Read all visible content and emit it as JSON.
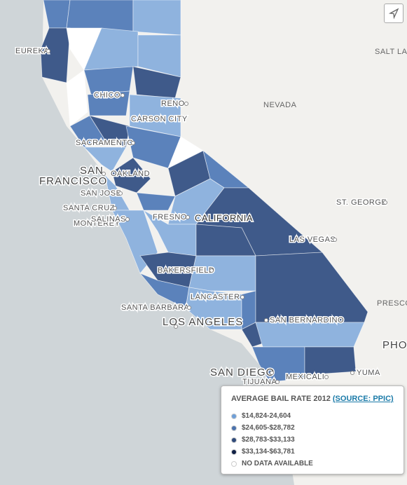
{
  "legend": {
    "title": "AVERAGE BAIL RATE 2012",
    "source": "(SOURCE: PPIC)",
    "items": [
      {
        "label": "$14,824-24,604",
        "color": "#6f9fd8"
      },
      {
        "label": "$24,605-$28,782",
        "color": "#4a72ad"
      },
      {
        "label": "$28,783-$33,133",
        "color": "#2f4a7a"
      },
      {
        "label": "$33,134-$63,781",
        "color": "#0f1f45"
      },
      {
        "label": "NO DATA AVAILABLE",
        "color": "#ffffff"
      }
    ]
  },
  "map": {
    "labels": [
      "EUREKA",
      "NEVADA",
      "SALT LAKE",
      "RENO",
      "CARSON CITY",
      "CHICO",
      "SACRAMENTO",
      "SAN",
      "FRANCISCO",
      "OAKLAND",
      "SAN JOSE",
      "SANTA CRUZ",
      "MONTEREY",
      "SALINAS",
      "FRESNO",
      "CALIFORNIA",
      "LAS VEGAS",
      "ST. GEORGE",
      "BAKERSFIELD",
      "SANTA BARBARA",
      "LANCASTER",
      "LOS ANGELES",
      "SAN BERNARDINO",
      "SAN DIEGO",
      "TIJUANA",
      "MEXICALI",
      "YUMA",
      "PRESCO",
      "PHO"
    ]
  }
}
